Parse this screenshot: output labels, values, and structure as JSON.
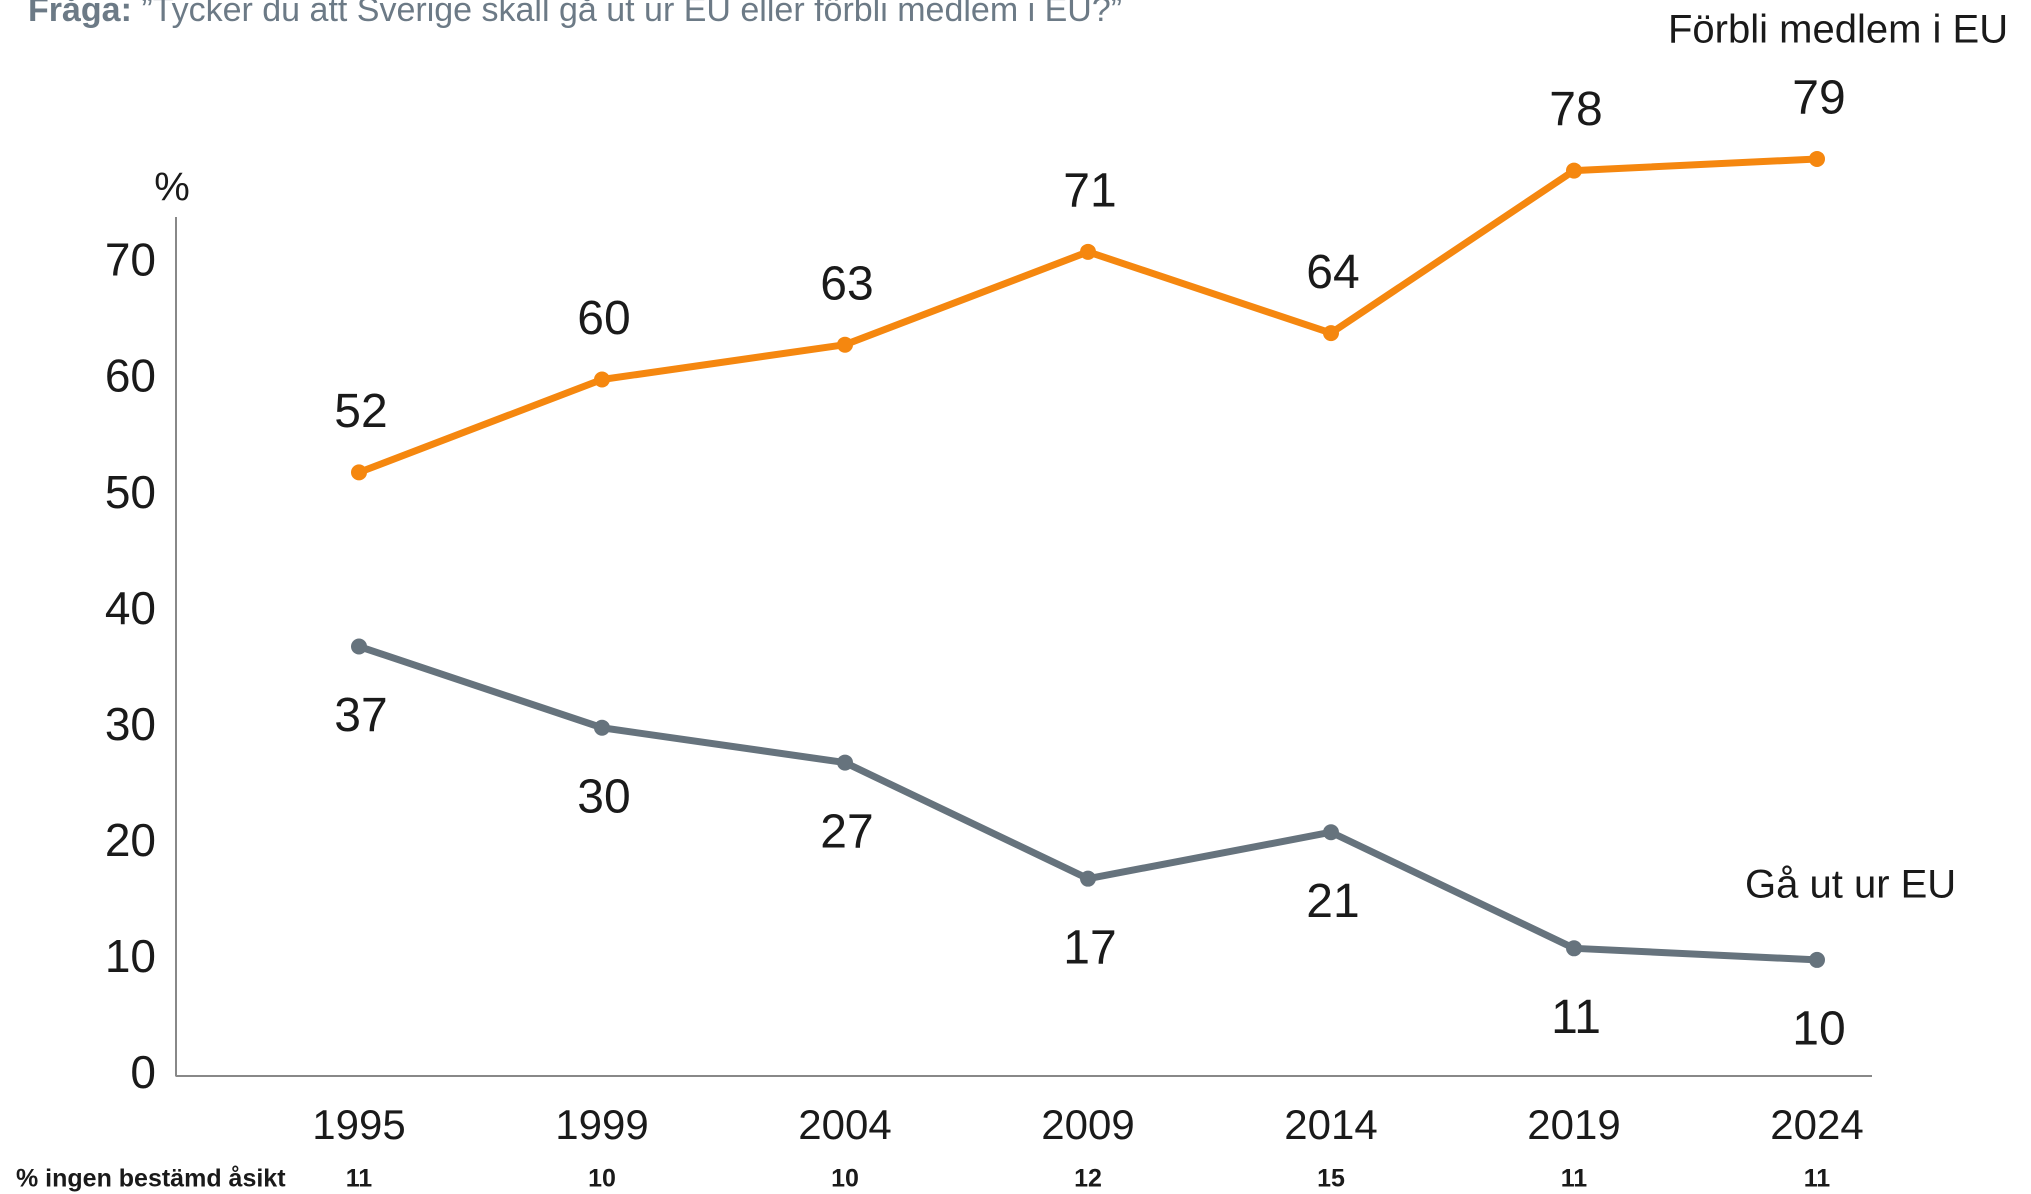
{
  "chart_data": {
    "type": "line",
    "title_label": "Fråga:",
    "title": "”Tycker du att Sverige skall gå ut ur EU eller förbli medlem i EU?”",
    "y_axis_label": "%",
    "categories": [
      "1995",
      "1999",
      "2004",
      "2009",
      "2014",
      "2019",
      "2024"
    ],
    "series": [
      {
        "name": "Förbli medlem i EU",
        "color": "#f5870f",
        "values": [
          52,
          60,
          63,
          71,
          64,
          78,
          79
        ]
      },
      {
        "name": "Gå ut ur EU",
        "color": "#66737d",
        "values": [
          37,
          30,
          27,
          17,
          21,
          11,
          10
        ]
      }
    ],
    "ylim": [
      0,
      74
    ],
    "yticks": [
      0,
      10,
      20,
      30,
      40,
      50,
      60,
      70
    ],
    "footer_row": {
      "label": "% ingen bestämd åsikt",
      "values": [
        11,
        10,
        10,
        12,
        15,
        11,
        11
      ]
    }
  }
}
